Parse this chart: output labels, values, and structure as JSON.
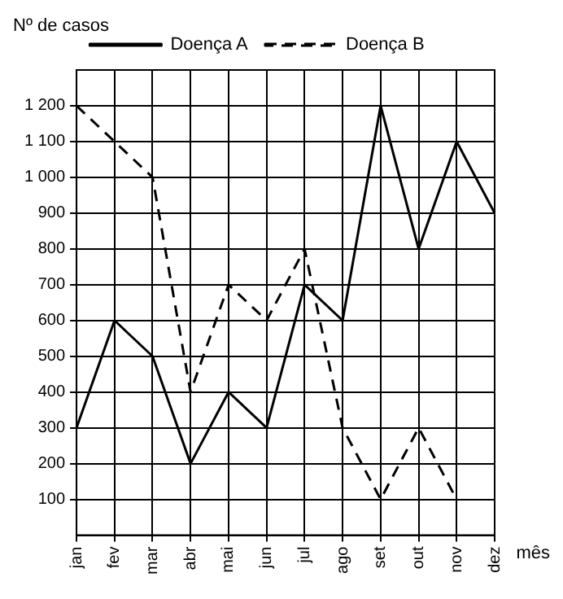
{
  "chart_data": {
    "type": "line",
    "ylabel": "Nº de casos",
    "xlabel": "mês",
    "categories": [
      "jan",
      "fev",
      "mar",
      "abr",
      "mai",
      "jun",
      "jul",
      "ago",
      "set",
      "out",
      "nov",
      "dez"
    ],
    "series": [
      {
        "name": "Doença A",
        "color": "#000000",
        "line_style": "solid",
        "values": [
          300,
          600,
          500,
          200,
          400,
          300,
          700,
          600,
          1200,
          800,
          1100,
          900
        ]
      },
      {
        "name": "Doença B",
        "color": "#000000",
        "line_style": "dashed",
        "values": [
          1200,
          1100,
          1000,
          400,
          700,
          600,
          800,
          300,
          100,
          300,
          100,
          null
        ]
      }
    ],
    "ylim": [
      0,
      1300
    ],
    "yticks": [
      {
        "value": 100,
        "label": "100"
      },
      {
        "value": 200,
        "label": "200"
      },
      {
        "value": 300,
        "label": "300"
      },
      {
        "value": 400,
        "label": "400"
      },
      {
        "value": 500,
        "label": "500"
      },
      {
        "value": 600,
        "label": "600"
      },
      {
        "value": 700,
        "label": "700"
      },
      {
        "value": 800,
        "label": "800"
      },
      {
        "value": 900,
        "label": "900"
      },
      {
        "value": 1000,
        "label": "1 000"
      },
      {
        "value": 1100,
        "label": "1 100"
      },
      {
        "value": 1200,
        "label": "1 200"
      }
    ],
    "grid": true,
    "legend": "top",
    "marker": "none"
  }
}
